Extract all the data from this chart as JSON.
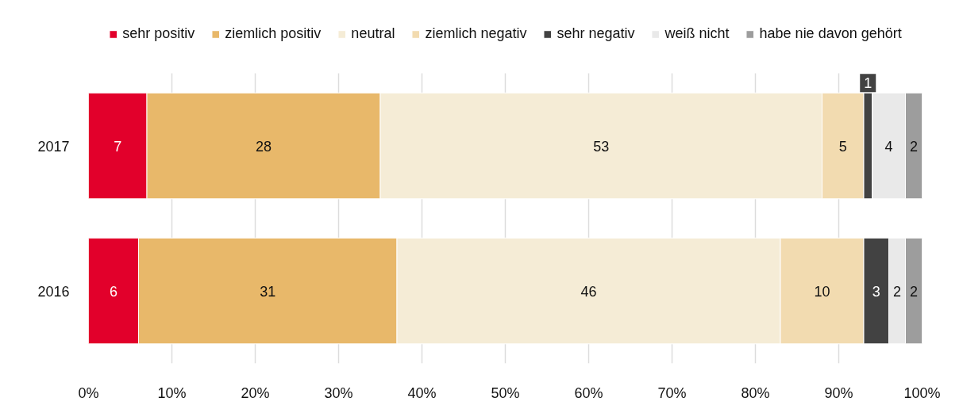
{
  "chart_data": {
    "type": "bar",
    "orientation": "horizontal",
    "stacked": true,
    "categories": [
      "2017",
      "2016"
    ],
    "series": [
      {
        "name": "sehr positiv",
        "color": "#e2002b",
        "values": [
          7,
          6
        ]
      },
      {
        "name": "ziemlich positiv",
        "color": "#e8b86a",
        "values": [
          28,
          31
        ]
      },
      {
        "name": "neutral",
        "color": "#f5ecd6",
        "values": [
          53,
          46
        ]
      },
      {
        "name": "ziemlich negativ",
        "color": "#f2dbb0",
        "values": [
          5,
          10
        ]
      },
      {
        "name": "sehr negativ",
        "color": "#424242",
        "values": [
          1,
          3
        ]
      },
      {
        "name": "weiß nicht",
        "color": "#e9e9e9",
        "values": [
          4,
          2
        ]
      },
      {
        "name": "habe nie davon gehört",
        "color": "#9d9d9d",
        "values": [
          2,
          2
        ]
      }
    ],
    "xlim": [
      0,
      100
    ],
    "xticks": [
      {
        "value": 0,
        "label": "0%"
      },
      {
        "value": 10,
        "label": "10%"
      },
      {
        "value": 20,
        "label": "20%"
      },
      {
        "value": 30,
        "label": "30%"
      },
      {
        "value": 40,
        "label": "40%"
      },
      {
        "value": 50,
        "label": "50%"
      },
      {
        "value": 60,
        "label": "60%"
      },
      {
        "value": 70,
        "label": "70%"
      },
      {
        "value": 80,
        "label": "80%"
      },
      {
        "value": 90,
        "label": "90%"
      },
      {
        "value": 100,
        "label": "100%"
      }
    ],
    "grid": "x",
    "legend": "top",
    "data_labels": true
  }
}
